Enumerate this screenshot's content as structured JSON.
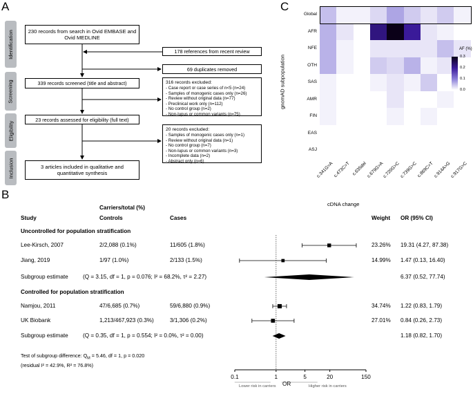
{
  "panels": {
    "a": "A",
    "b": "B",
    "c": "C"
  },
  "prisma": {
    "stages": [
      "Identification",
      "Screening",
      "Eligibility",
      "Inclusion"
    ],
    "search": "230 records from search in Ovid EMBASE and Ovid MEDLINE",
    "review_refs": "178 references from recent review",
    "duplicates": "69 duplicates removed",
    "screened": "339 records screened (title and abstract)",
    "excluded1_title": "316 records excluded:",
    "excluded1_items": [
      "Case report or case series of n<5 (n=24)",
      "Samples of monogenic cases only (n=26)",
      "Review without original data (n=77)",
      "Preclinical work only (n=112)",
      "No control group (n=2)",
      "Non-lupus or common variants (n=75)"
    ],
    "assessed": "23 records assessed for eligibility (full text)",
    "excluded2_title": "20 records excluded:",
    "excluded2_items": [
      "Samples of monogenic cases only (n=1)",
      "Review without original data (n=1)",
      "No control group (n=7)",
      "Non-lupus or common variants (n=3)",
      "Incomplete data (n=2)",
      "Abstract only (n=6)"
    ],
    "included": "3 articles included in qualitative and quantitative synthesis"
  },
  "heatmap": {
    "rows": [
      "Global",
      "AFR",
      "NFE",
      "OTH",
      "SAS",
      "AMR",
      "FIN",
      "EAS",
      "ASJ"
    ],
    "cols": [
      "c.341G>A",
      "c.473C>T",
      "c.635del",
      "c.679G>A",
      "c.720G>C",
      "c.739G>C",
      "c.869C>T",
      "c.914A>G",
      "c.917G>C"
    ],
    "values": [
      [
        0.05,
        0.01,
        0.01,
        0.03,
        0.07,
        0.04,
        0.02,
        0.04,
        0.01
      ],
      [
        0.06,
        0.02,
        0.0,
        0.22,
        0.3,
        0.2,
        0.02,
        0.01,
        0.0
      ],
      [
        0.06,
        0.01,
        0.0,
        0.02,
        0.02,
        0.02,
        0.02,
        0.05,
        0.02
      ],
      [
        0.06,
        0.01,
        0.0,
        0.04,
        0.03,
        0.06,
        0.01,
        0.02,
        0.0
      ],
      [
        0.01,
        0.0,
        0.0,
        0.01,
        0.02,
        0.01,
        0.04,
        0.0,
        0.0
      ],
      [
        0.01,
        0.0,
        0.0,
        0.0,
        0.02,
        0.0,
        0.0,
        0.01,
        0.0
      ],
      [
        0.01,
        0.0,
        0.0,
        0.0,
        0.01,
        0.0,
        0.01,
        0.0,
        0.0
      ],
      [
        0.0,
        0.0,
        0.0,
        0.0,
        0.0,
        0.0,
        0.0,
        0.0,
        0.0
      ],
      [
        0.0,
        0.0,
        0.0,
        0.0,
        0.0,
        0.0,
        0.0,
        0.0,
        0.0
      ]
    ],
    "ylabel": "gnomAD subpopulation",
    "xlabel": "cDNA change",
    "legend_title": "AF (%)",
    "legend_ticks": [
      "0.3",
      "0.2",
      "0.1",
      "0.0"
    ],
    "legend_max": 0.3
  },
  "forest": {
    "header_carriers": "Carriers/total (%)",
    "col_study": "Study",
    "col_controls": "Controls",
    "col_cases": "Cases",
    "col_weight": "Weight",
    "col_or": "OR (95% CI)",
    "group1": "Uncontrolled for population stratification",
    "group2": "Controlled for population stratification",
    "rows": [
      {
        "study": "Lee-Kirsch, 2007",
        "controls": "2/2,088 (0.1%)",
        "cases": "11/605 (1.8%)",
        "weight": "23.26%",
        "or_text": "19.31 (4.27, 87.38)",
        "or": 19.31,
        "lo": 4.27,
        "hi": 87.38,
        "w": 23.26
      },
      {
        "study": "Jiang, 2019",
        "controls": "1/97 (1.0%)",
        "cases": "2/133 (1.5%)",
        "weight": "14.99%",
        "or_text": "1.47 (0.13, 16.40)",
        "or": 1.47,
        "lo": 0.13,
        "hi": 16.4,
        "w": 14.99
      },
      {
        "study": "Namjou, 2011",
        "controls": "47/6,685 (0.7%)",
        "cases": "59/6,880 (0.9%)",
        "weight": "34.74%",
        "or_text": "1.22 (0.83, 1.79)",
        "or": 1.22,
        "lo": 0.83,
        "hi": 1.79,
        "w": 34.74
      },
      {
        "study": "UK Biobank",
        "controls": "1,213/467,923 (0.3%)",
        "cases": "3/1,306 (0.2%)",
        "weight": "27.01%",
        "or_text": "0.84 (0.26, 2.73)",
        "or": 0.84,
        "lo": 0.26,
        "hi": 2.73,
        "w": 27.01
      }
    ],
    "subgroup1": {
      "label": "Subgroup estimate",
      "stats": "(Q = 3.15, df = 1, p = 0.076; I² = 68.2%, τ² = 2.27)",
      "or_text": "6.37 (0.52, 77.74)",
      "or": 6.37,
      "lo": 0.52,
      "hi": 77.74
    },
    "subgroup2": {
      "label": "Subgroup estimate",
      "stats": "(Q = 0.35, df = 1, p = 0.554; I² = 0.0%, τ² = 0.00)",
      "or_text": "1.18 (0.82, 1.70)",
      "or": 1.18,
      "lo": 0.82,
      "hi": 1.7
    },
    "test_line1": "Test of subgroup difference: Q",
    "test_sub": "M",
    "test_line1b": " = 5.46, df = 1, p = 0.020",
    "test_line2": "(residual I² = 42.9%, R² = 76.8%)",
    "axis_ticks": [
      0.1,
      1,
      5,
      20,
      150
    ],
    "axis_tick_labels": [
      "0.1",
      "1",
      "5",
      "20",
      "150"
    ],
    "axis_label": "OR",
    "lower_label": "Lower risk in carriers",
    "higher_label": "Higher risk in carriers"
  }
}
